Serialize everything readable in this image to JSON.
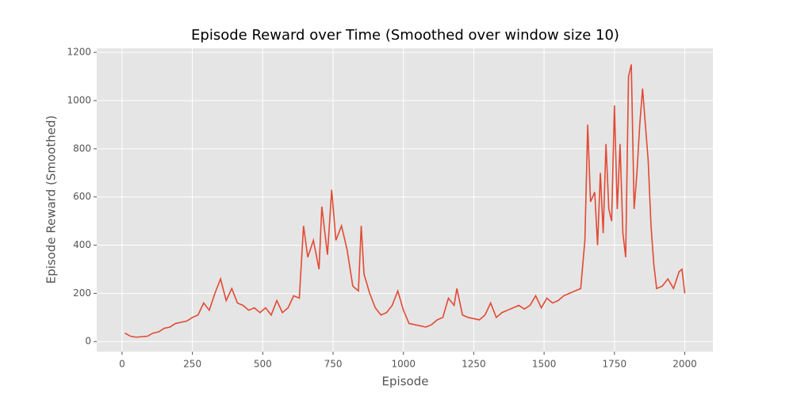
{
  "chart_data": {
    "type": "line",
    "title": "Episode Reward over Time (Smoothed over window size 10)",
    "x_label": "Episode",
    "y_label": "Episode Reward (Smoothed)",
    "x": [
      10,
      30,
      50,
      70,
      90,
      110,
      130,
      150,
      170,
      190,
      210,
      230,
      250,
      270,
      290,
      310,
      330,
      350,
      370,
      390,
      410,
      430,
      450,
      470,
      490,
      510,
      530,
      550,
      570,
      590,
      610,
      630,
      645,
      660,
      680,
      700,
      710,
      730,
      745,
      760,
      780,
      800,
      820,
      840,
      850,
      860,
      880,
      900,
      920,
      940,
      960,
      980,
      1000,
      1020,
      1040,
      1060,
      1080,
      1100,
      1120,
      1140,
      1160,
      1180,
      1190,
      1210,
      1230,
      1250,
      1270,
      1290,
      1310,
      1330,
      1350,
      1370,
      1390,
      1410,
      1430,
      1450,
      1470,
      1490,
      1510,
      1530,
      1550,
      1570,
      1590,
      1610,
      1630,
      1645,
      1655,
      1665,
      1680,
      1690,
      1700,
      1710,
      1720,
      1730,
      1740,
      1750,
      1760,
      1770,
      1780,
      1790,
      1800,
      1810,
      1820,
      1830,
      1840,
      1850,
      1860,
      1870,
      1880,
      1890,
      1900,
      1920,
      1940,
      1960,
      1980,
      1990,
      2000
    ],
    "series": [
      {
        "name": "Episode Reward (Smoothed)",
        "color": "#E24A33",
        "values": [
          35,
          22,
          18,
          20,
          22,
          35,
          40,
          55,
          60,
          75,
          80,
          85,
          100,
          110,
          160,
          130,
          200,
          260,
          170,
          220,
          160,
          150,
          130,
          140,
          120,
          140,
          110,
          170,
          120,
          140,
          190,
          180,
          480,
          350,
          420,
          300,
          560,
          360,
          630,
          420,
          480,
          380,
          230,
          210,
          480,
          280,
          200,
          140,
          110,
          120,
          150,
          210,
          130,
          75,
          70,
          65,
          60,
          70,
          90,
          100,
          180,
          150,
          220,
          110,
          100,
          95,
          90,
          110,
          160,
          100,
          120,
          130,
          140,
          150,
          135,
          150,
          190,
          140,
          180,
          160,
          170,
          190,
          200,
          210,
          220,
          420,
          900,
          580,
          620,
          400,
          700,
          450,
          820,
          550,
          500,
          980,
          550,
          820,
          450,
          350,
          1100,
          1150,
          550,
          700,
          900,
          1050,
          900,
          750,
          480,
          320,
          220,
          230,
          260,
          220,
          290,
          300,
          200
        ]
      }
    ],
    "xlim": [
      -90,
      2100
    ],
    "ylim": [
      -42,
      1217
    ],
    "xticks": [
      0,
      250,
      500,
      750,
      1000,
      1250,
      1500,
      1750,
      2000
    ],
    "yticks": [
      0,
      200,
      400,
      600,
      800,
      1000,
      1200
    ],
    "grid": true
  }
}
